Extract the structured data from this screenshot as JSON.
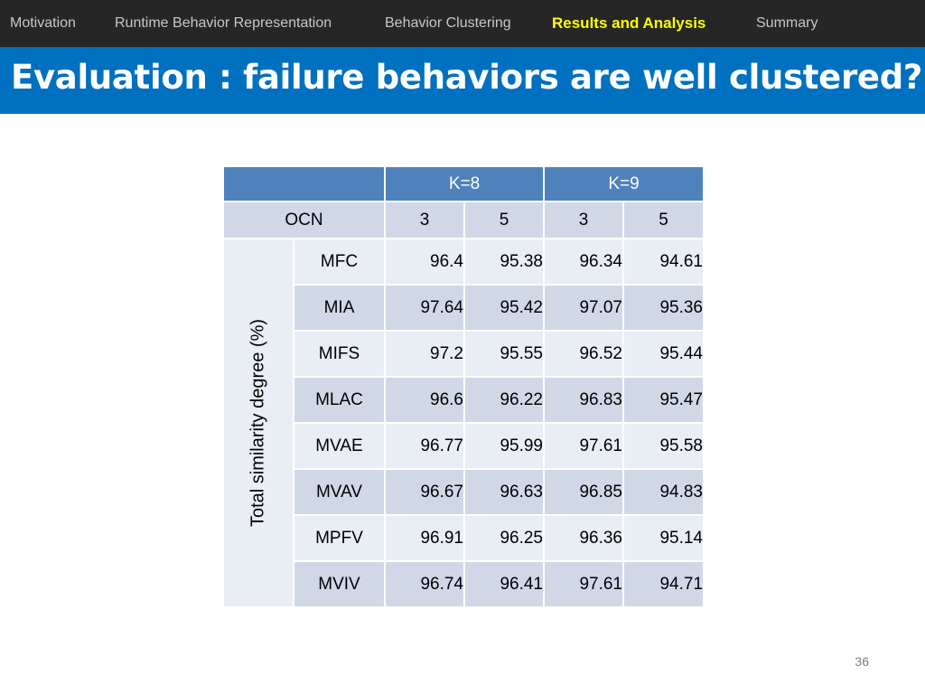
{
  "nav": {
    "items": [
      {
        "label": "Motivation",
        "active": false
      },
      {
        "label": "Runtime Behavior Representation",
        "active": false
      },
      {
        "label": "Behavior Clustering",
        "active": false
      },
      {
        "label": "Results and Analysis",
        "active": true
      },
      {
        "label": "Summary",
        "active": false
      }
    ]
  },
  "slide": {
    "title": "Evaluation : failure behaviors are well clustered?",
    "page_number": "36"
  },
  "table": {
    "group_headers": [
      "K=8",
      "K=9"
    ],
    "ocn_label": "OCN",
    "ocn_values": [
      "3",
      "5",
      "3",
      "5"
    ],
    "row_group_label": "Total similarity degree (%)",
    "rows": [
      {
        "method": "MFC",
        "values": [
          "96.4",
          "95.38",
          "96.34",
          "94.61"
        ]
      },
      {
        "method": "MIA",
        "values": [
          "97.64",
          "95.42",
          "97.07",
          "95.36"
        ]
      },
      {
        "method": "MIFS",
        "values": [
          "97.2",
          "95.55",
          "96.52",
          "95.44"
        ]
      },
      {
        "method": "MLAC",
        "values": [
          "96.6",
          "96.22",
          "96.83",
          "95.47"
        ]
      },
      {
        "method": "MVAE",
        "values": [
          "96.77",
          "95.99",
          "97.61",
          "95.58"
        ]
      },
      {
        "method": "MVAV",
        "values": [
          "96.67",
          "96.63",
          "96.85",
          "94.83"
        ]
      },
      {
        "method": "MPFV",
        "values": [
          "96.91",
          "96.25",
          "96.36",
          "95.14"
        ]
      },
      {
        "method": "MVIV",
        "values": [
          "96.74",
          "96.41",
          "97.61",
          "94.71"
        ]
      }
    ]
  },
  "colors": {
    "nav_background": "#262626",
    "nav_active": "#ffff00",
    "title_background": "#0070c0",
    "table_header": "#4f81bd",
    "table_band_dark": "#d0d8e8",
    "table_band_light": "#e9edf4"
  }
}
